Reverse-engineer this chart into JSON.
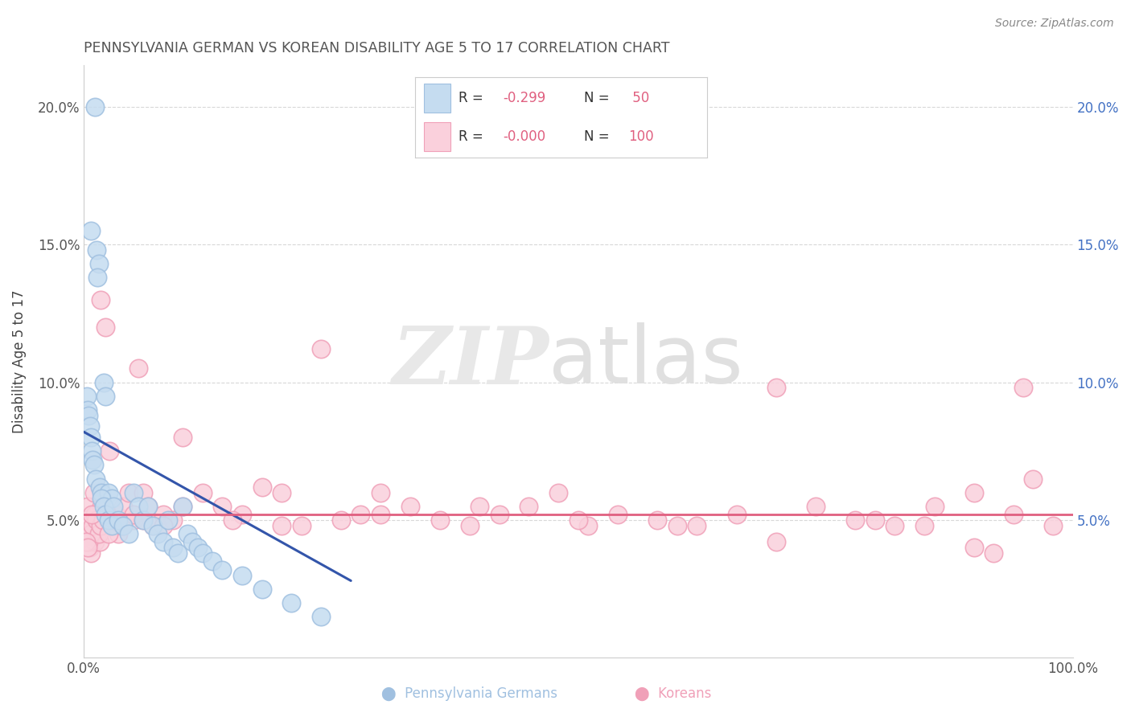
{
  "title": "PENNSYLVANIA GERMAN VS KOREAN DISABILITY AGE 5 TO 17 CORRELATION CHART",
  "source": "Source: ZipAtlas.com",
  "ylabel": "Disability Age 5 to 17",
  "xlim": [
    0.0,
    1.0
  ],
  "ylim": [
    0.0,
    0.215
  ],
  "yticks": [
    0.05,
    0.1,
    0.15,
    0.2
  ],
  "ytick_labels": [
    "5.0%",
    "10.0%",
    "15.0%",
    "20.0%"
  ],
  "xtick_left": "0.0%",
  "xtick_right": "100.0%",
  "color_pa_fill": "#c5dcf0",
  "color_pa_edge": "#a0c0e0",
  "color_korean_fill": "#fad0dc",
  "color_korean_edge": "#f0a0b8",
  "line_pa_color": "#3355aa",
  "line_korean_color": "#e06080",
  "bg_color": "#ffffff",
  "grid_color": "#d8d8d8",
  "right_axis_color": "#4472c4",
  "title_color": "#555555",
  "source_color": "#888888",
  "watermark_zip_color": "#e8e8e8",
  "watermark_atlas_color": "#e0e0e0",
  "legend_border_color": "#cccccc",
  "r_value_color": "#e06080",
  "n_value_color": "#e06080",
  "legend_text_color": "#333333",
  "pa_x": [
    0.011,
    0.007,
    0.013,
    0.015,
    0.014,
    0.003,
    0.004,
    0.005,
    0.006,
    0.007,
    0.008,
    0.009,
    0.01,
    0.012,
    0.016,
    0.018,
    0.02,
    0.022,
    0.025,
    0.028,
    0.018,
    0.02,
    0.022,
    0.025,
    0.028,
    0.03,
    0.035,
    0.04,
    0.045,
    0.05,
    0.055,
    0.06,
    0.065,
    0.07,
    0.075,
    0.08,
    0.085,
    0.09,
    0.095,
    0.1,
    0.105,
    0.11,
    0.115,
    0.12,
    0.13,
    0.14,
    0.16,
    0.18,
    0.21,
    0.24
  ],
  "pa_y": [
    0.2,
    0.155,
    0.148,
    0.143,
    0.138,
    0.095,
    0.09,
    0.088,
    0.084,
    0.08,
    0.075,
    0.072,
    0.07,
    0.065,
    0.062,
    0.06,
    0.1,
    0.095,
    0.06,
    0.058,
    0.058,
    0.055,
    0.052,
    0.05,
    0.048,
    0.055,
    0.05,
    0.048,
    0.045,
    0.06,
    0.055,
    0.05,
    0.055,
    0.048,
    0.045,
    0.042,
    0.05,
    0.04,
    0.038,
    0.055,
    0.045,
    0.042,
    0.04,
    0.038,
    0.035,
    0.032,
    0.03,
    0.025,
    0.02,
    0.015
  ],
  "korean_x": [
    0.001,
    0.002,
    0.003,
    0.004,
    0.005,
    0.006,
    0.007,
    0.008,
    0.009,
    0.01,
    0.011,
    0.012,
    0.013,
    0.014,
    0.015,
    0.016,
    0.017,
    0.018,
    0.019,
    0.02,
    0.022,
    0.024,
    0.026,
    0.028,
    0.03,
    0.032,
    0.035,
    0.038,
    0.04,
    0.045,
    0.05,
    0.055,
    0.06,
    0.065,
    0.07,
    0.08,
    0.09,
    0.1,
    0.12,
    0.14,
    0.16,
    0.18,
    0.2,
    0.22,
    0.24,
    0.26,
    0.28,
    0.3,
    0.33,
    0.36,
    0.39,
    0.42,
    0.45,
    0.48,
    0.51,
    0.54,
    0.58,
    0.62,
    0.66,
    0.7,
    0.74,
    0.78,
    0.82,
    0.86,
    0.9,
    0.94,
    0.96,
    0.98,
    0.001,
    0.003,
    0.005,
    0.007,
    0.009,
    0.011,
    0.013,
    0.015,
    0.017,
    0.019,
    0.025,
    0.03,
    0.04,
    0.05,
    0.06,
    0.08,
    0.1,
    0.15,
    0.2,
    0.3,
    0.4,
    0.5,
    0.6,
    0.7,
    0.8,
    0.85,
    0.9,
    0.92,
    0.95,
    0.002,
    0.004,
    0.008
  ],
  "korean_y": [
    0.048,
    0.045,
    0.042,
    0.055,
    0.05,
    0.04,
    0.038,
    0.048,
    0.045,
    0.06,
    0.042,
    0.052,
    0.048,
    0.045,
    0.05,
    0.042,
    0.13,
    0.055,
    0.048,
    0.052,
    0.12,
    0.05,
    0.075,
    0.05,
    0.048,
    0.052,
    0.045,
    0.048,
    0.055,
    0.06,
    0.05,
    0.105,
    0.06,
    0.055,
    0.048,
    0.052,
    0.05,
    0.08,
    0.06,
    0.055,
    0.052,
    0.062,
    0.06,
    0.048,
    0.112,
    0.05,
    0.052,
    0.06,
    0.055,
    0.05,
    0.048,
    0.052,
    0.055,
    0.06,
    0.048,
    0.052,
    0.05,
    0.048,
    0.052,
    0.098,
    0.055,
    0.05,
    0.048,
    0.055,
    0.06,
    0.052,
    0.065,
    0.048,
    0.05,
    0.048,
    0.042,
    0.045,
    0.048,
    0.052,
    0.05,
    0.045,
    0.048,
    0.05,
    0.045,
    0.05,
    0.048,
    0.052,
    0.05,
    0.048,
    0.055,
    0.05,
    0.048,
    0.052,
    0.055,
    0.05,
    0.048,
    0.042,
    0.05,
    0.048,
    0.04,
    0.038,
    0.098,
    0.042,
    0.04,
    0.052
  ],
  "pa_line_x0": 0.0,
  "pa_line_x1": 0.27,
  "pa_line_y0": 0.082,
  "pa_line_y1": 0.028,
  "korean_line_x0": 0.0,
  "korean_line_x1": 1.0,
  "korean_line_y0": 0.052,
  "korean_line_y1": 0.052
}
